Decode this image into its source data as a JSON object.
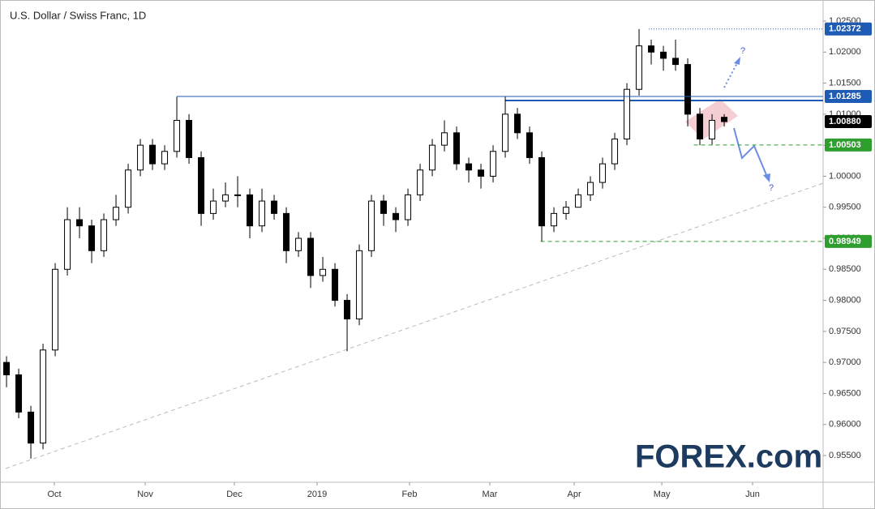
{
  "chart_data": {
    "type": "candlestick",
    "title": "U.S. Dollar / Swiss Franc, 1D",
    "open": [
      0.97,
      0.968,
      0.962,
      0.957,
      0.972,
      0.985,
      0.993,
      0.992,
      0.988,
      0.993,
      0.995,
      1.001,
      1.005,
      1.002,
      1.004,
      1.009,
      1.003,
      0.994,
      0.996,
      0.997,
      0.997,
      0.992,
      0.996,
      0.994,
      0.988,
      0.99,
      0.984,
      0.985,
      0.98,
      0.977,
      0.988,
      0.996,
      0.994,
      0.993,
      0.997,
      1.001,
      1.005,
      1.007,
      1.002,
      1.001,
      1.0,
      1.004,
      1.01,
      1.007,
      1.003,
      0.992,
      0.994,
      0.995,
      0.997,
      0.999,
      1.002,
      1.006,
      1.014,
      1.021,
      1.02,
      1.019,
      1.018,
      1.01,
      1.006,
      1.0095
    ],
    "high": [
      0.971,
      0.969,
      0.963,
      0.973,
      0.986,
      0.995,
      0.995,
      0.993,
      0.994,
      0.997,
      1.002,
      1.006,
      1.006,
      1.005,
      1.0128,
      1.01,
      1.004,
      0.998,
      0.999,
      1.0,
      0.998,
      0.998,
      0.997,
      0.995,
      0.991,
      0.991,
      0.987,
      0.986,
      0.981,
      0.989,
      0.997,
      0.997,
      0.995,
      0.998,
      1.002,
      1.006,
      1.009,
      1.008,
      1.003,
      1.002,
      1.005,
      1.0128,
      1.011,
      1.008,
      1.004,
      0.995,
      0.996,
      0.998,
      1.0,
      1.003,
      1.007,
      1.015,
      1.02372,
      1.022,
      1.021,
      1.022,
      1.019,
      1.011,
      1.01,
      1.01
    ],
    "low": [
      0.966,
      0.961,
      0.9545,
      0.956,
      0.971,
      0.984,
      0.99,
      0.986,
      0.987,
      0.992,
      0.994,
      1.0,
      1.001,
      1.001,
      1.003,
      1.002,
      0.992,
      0.993,
      0.995,
      0.995,
      0.99,
      0.991,
      0.993,
      0.986,
      0.987,
      0.982,
      0.983,
      0.979,
      0.9718,
      0.976,
      0.987,
      0.992,
      0.991,
      0.992,
      0.996,
      1.0,
      1.004,
      1.001,
      0.999,
      0.998,
      0.999,
      1.003,
      1.006,
      1.002,
      0.9895,
      0.991,
      0.993,
      0.995,
      0.996,
      0.998,
      1.001,
      1.005,
      1.013,
      1.018,
      1.017,
      1.017,
      1.008,
      1.005,
      1.005,
      1.008
    ],
    "close": [
      0.968,
      0.962,
      0.957,
      0.972,
      0.985,
      0.993,
      0.992,
      0.988,
      0.993,
      0.995,
      1.001,
      1.005,
      1.002,
      1.004,
      1.009,
      1.003,
      0.994,
      0.996,
      0.997,
      0.997,
      0.992,
      0.996,
      0.994,
      0.988,
      0.99,
      0.984,
      0.985,
      0.98,
      0.977,
      0.988,
      0.996,
      0.994,
      0.993,
      0.997,
      1.001,
      1.005,
      1.007,
      1.002,
      1.001,
      1.0,
      1.004,
      1.01,
      1.007,
      1.003,
      0.992,
      0.994,
      0.995,
      0.997,
      0.999,
      1.002,
      1.006,
      1.014,
      1.021,
      1.02,
      1.019,
      1.018,
      1.01,
      1.006,
      1.009,
      1.0088
    ],
    "xlim": [
      -0.07,
      67.13
    ],
    "xticks": [
      {
        "value": 3.93,
        "label": "Oct"
      },
      {
        "value": 11.4,
        "label": "Nov"
      },
      {
        "value": 18.73,
        "label": "Dec"
      },
      {
        "value": 25.53,
        "label": "2019"
      },
      {
        "value": 33.13,
        "label": "Feb"
      },
      {
        "value": 39.73,
        "label": "Mar"
      },
      {
        "value": 46.67,
        "label": "Apr"
      },
      {
        "value": 53.87,
        "label": "May"
      },
      {
        "value": 61.33,
        "label": "Jun"
      }
    ],
    "ylim": [
      0.95069,
      1.02748
    ],
    "yticks": [
      {
        "value": 0.955,
        "label": "0.95500"
      },
      {
        "value": 0.96,
        "label": "0.96000"
      },
      {
        "value": 0.965,
        "label": "0.96500"
      },
      {
        "value": 0.97,
        "label": "0.97000"
      },
      {
        "value": 0.975,
        "label": "0.97500"
      },
      {
        "value": 0.98,
        "label": "0.98000"
      },
      {
        "value": 0.985,
        "label": "0.98500"
      },
      {
        "value": 0.99,
        "label": "0.99000"
      },
      {
        "value": 0.995,
        "label": "0.99500"
      },
      {
        "value": 1.0,
        "label": "1.00000"
      },
      {
        "value": 1.005,
        "label": "1.00500"
      },
      {
        "value": 1.01,
        "label": "1.01000"
      },
      {
        "value": 1.015,
        "label": "1.01500"
      },
      {
        "value": 1.02,
        "label": "1.02000"
      },
      {
        "value": 1.025,
        "label": "1.02500"
      }
    ],
    "levels": [
      {
        "value": 1.02372,
        "label": "1.02372",
        "color": "#1e5bb5",
        "start": 52.8,
        "style": "dotted"
      },
      {
        "value": 1.01285,
        "label": "1.01285",
        "color": "#1e5bb5",
        "start": 14,
        "style": "solid"
      },
      {
        "value": 1.0088,
        "label": "1.00880",
        "color": "#000000"
      },
      {
        "value": 1.00503,
        "label": "1.00503",
        "color": "#2e9e2e",
        "start": 56.5,
        "style": "dashed"
      },
      {
        "value": 0.98949,
        "label": "0.98949",
        "color": "#2e9e2e",
        "start": 43.9,
        "style": "dashed"
      }
    ],
    "resistance2": {
      "value": 1.0122,
      "start": 41,
      "color": "#1e5bb5"
    },
    "trendline": [
      0.95291,
      0.99888
    ],
    "annotations": [
      "?",
      "?"
    ],
    "logo": "FOREX.com"
  }
}
